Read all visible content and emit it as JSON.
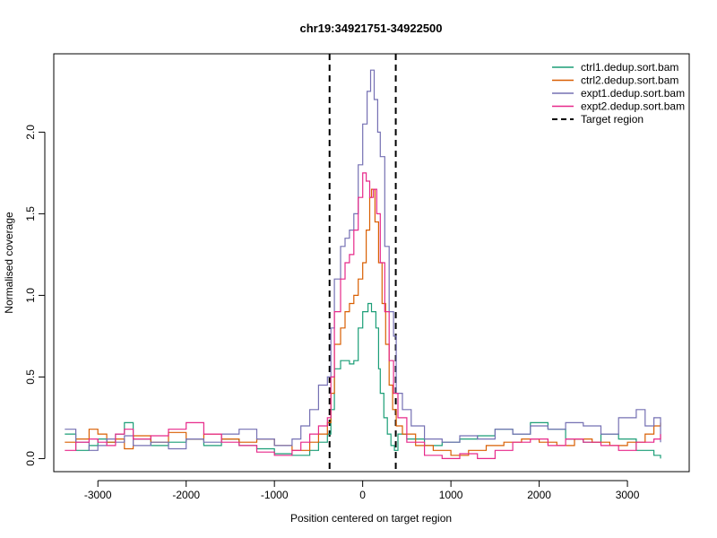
{
  "chart_data": {
    "type": "line",
    "title": "chr19:34921751-34922500",
    "xlabel": "Position centered on target region",
    "ylabel": "Normalised coverage",
    "xlim": [
      -3500,
      3700
    ],
    "ylim": [
      -0.08,
      2.48
    ],
    "x_ticks": [
      -3000,
      -2000,
      -1000,
      0,
      1000,
      2000,
      3000
    ],
    "x_tick_labels": [
      "-3000",
      "-2000",
      "-1000",
      "0",
      "1000",
      "2000",
      "3000"
    ],
    "y_ticks": [
      0.0,
      0.5,
      1.0,
      1.5,
      2.0
    ],
    "y_tick_labels": [
      "0.0",
      "0.5",
      "1.0",
      "1.5",
      "2.0"
    ],
    "grid": false,
    "legend_position": "top-right",
    "target_region": {
      "label": "Target region",
      "x_start": -375,
      "x_end": 375,
      "color": "#000000",
      "style": "dashed"
    },
    "series": [
      {
        "name": "ctrl1.dedup.sort.bam",
        "color": "#1B9E77",
        "points": [
          [
            -3375,
            0.15
          ],
          [
            -3250,
            0.05
          ],
          [
            -3100,
            0.08
          ],
          [
            -3000,
            0.12
          ],
          [
            -2900,
            0.1
          ],
          [
            -2800,
            0.15
          ],
          [
            -2700,
            0.22
          ],
          [
            -2600,
            0.12
          ],
          [
            -2400,
            0.08
          ],
          [
            -2200,
            0.1
          ],
          [
            -2000,
            0.12
          ],
          [
            -1800,
            0.08
          ],
          [
            -1600,
            0.12
          ],
          [
            -1400,
            0.08
          ],
          [
            -1200,
            0.06
          ],
          [
            -1000,
            0.03
          ],
          [
            -800,
            0.02
          ],
          [
            -600,
            0.05
          ],
          [
            -500,
            0.1
          ],
          [
            -400,
            0.15
          ],
          [
            -360,
            0.3
          ],
          [
            -320,
            0.55
          ],
          [
            -250,
            0.6
          ],
          [
            -150,
            0.58
          ],
          [
            -100,
            0.6
          ],
          [
            -50,
            0.8
          ],
          [
            0,
            0.9
          ],
          [
            60,
            0.95
          ],
          [
            100,
            0.9
          ],
          [
            150,
            0.8
          ],
          [
            180,
            0.55
          ],
          [
            200,
            0.4
          ],
          [
            240,
            0.25
          ],
          [
            280,
            0.15
          ],
          [
            320,
            0.08
          ],
          [
            360,
            0.05
          ],
          [
            400,
            0.15
          ],
          [
            500,
            0.12
          ],
          [
            700,
            0.08
          ],
          [
            900,
            0.1
          ],
          [
            1100,
            0.12
          ],
          [
            1300,
            0.14
          ],
          [
            1500,
            0.18
          ],
          [
            1700,
            0.15
          ],
          [
            1900,
            0.22
          ],
          [
            2100,
            0.18
          ],
          [
            2300,
            0.12
          ],
          [
            2500,
            0.1
          ],
          [
            2700,
            0.15
          ],
          [
            2900,
            0.12
          ],
          [
            3100,
            0.05
          ],
          [
            3300,
            0.02
          ],
          [
            3375,
            0.0
          ]
        ]
      },
      {
        "name": "ctrl2.dedup.sort.bam",
        "color": "#D95F02",
        "points": [
          [
            -3375,
            0.1
          ],
          [
            -3250,
            0.12
          ],
          [
            -3100,
            0.18
          ],
          [
            -3000,
            0.15
          ],
          [
            -2900,
            0.1
          ],
          [
            -2800,
            0.12
          ],
          [
            -2700,
            0.06
          ],
          [
            -2600,
            0.14
          ],
          [
            -2400,
            0.1
          ],
          [
            -2200,
            0.16
          ],
          [
            -2000,
            0.12
          ],
          [
            -1800,
            0.15
          ],
          [
            -1600,
            0.12
          ],
          [
            -1400,
            0.1
          ],
          [
            -1200,
            0.12
          ],
          [
            -1000,
            0.08
          ],
          [
            -800,
            0.05
          ],
          [
            -600,
            0.1
          ],
          [
            -500,
            0.15
          ],
          [
            -400,
            0.22
          ],
          [
            -360,
            0.4
          ],
          [
            -320,
            0.7
          ],
          [
            -250,
            0.8
          ],
          [
            -200,
            0.9
          ],
          [
            -150,
            0.95
          ],
          [
            -100,
            1.0
          ],
          [
            -50,
            1.1
          ],
          [
            0,
            1.2
          ],
          [
            40,
            1.4
          ],
          [
            80,
            1.6
          ],
          [
            100,
            1.65
          ],
          [
            140,
            1.45
          ],
          [
            180,
            1.2
          ],
          [
            220,
            0.95
          ],
          [
            260,
            0.7
          ],
          [
            300,
            0.45
          ],
          [
            340,
            0.3
          ],
          [
            380,
            0.2
          ],
          [
            450,
            0.15
          ],
          [
            600,
            0.08
          ],
          [
            800,
            0.05
          ],
          [
            1000,
            0.02
          ],
          [
            1200,
            0.05
          ],
          [
            1400,
            0.08
          ],
          [
            1600,
            0.1
          ],
          [
            1800,
            0.12
          ],
          [
            2000,
            0.1
          ],
          [
            2200,
            0.08
          ],
          [
            2400,
            0.12
          ],
          [
            2600,
            0.1
          ],
          [
            2800,
            0.08
          ],
          [
            3000,
            0.1
          ],
          [
            3200,
            0.15
          ],
          [
            3300,
            0.2
          ],
          [
            3375,
            0.22
          ]
        ]
      },
      {
        "name": "expt1.dedup.sort.bam",
        "color": "#7570B3",
        "points": [
          [
            -3375,
            0.18
          ],
          [
            -3250,
            0.1
          ],
          [
            -3100,
            0.05
          ],
          [
            -3000,
            0.08
          ],
          [
            -2900,
            0.12
          ],
          [
            -2800,
            0.1
          ],
          [
            -2700,
            0.14
          ],
          [
            -2600,
            0.08
          ],
          [
            -2400,
            0.1
          ],
          [
            -2200,
            0.06
          ],
          [
            -2000,
            0.12
          ],
          [
            -1800,
            0.1
          ],
          [
            -1600,
            0.15
          ],
          [
            -1400,
            0.18
          ],
          [
            -1200,
            0.12
          ],
          [
            -1000,
            0.08
          ],
          [
            -800,
            0.12
          ],
          [
            -700,
            0.2
          ],
          [
            -600,
            0.3
          ],
          [
            -500,
            0.45
          ],
          [
            -400,
            0.5
          ],
          [
            -360,
            0.8
          ],
          [
            -320,
            1.1
          ],
          [
            -250,
            1.3
          ],
          [
            -200,
            1.35
          ],
          [
            -150,
            1.4
          ],
          [
            -100,
            1.5
          ],
          [
            -50,
            1.8
          ],
          [
            0,
            2.05
          ],
          [
            50,
            2.25
          ],
          [
            90,
            2.38
          ],
          [
            130,
            2.2
          ],
          [
            170,
            2.0
          ],
          [
            200,
            1.85
          ],
          [
            250,
            1.3
          ],
          [
            300,
            0.9
          ],
          [
            350,
            0.75
          ],
          [
            380,
            0.4
          ],
          [
            450,
            0.3
          ],
          [
            550,
            0.2
          ],
          [
            700,
            0.12
          ],
          [
            900,
            0.1
          ],
          [
            1100,
            0.14
          ],
          [
            1300,
            0.12
          ],
          [
            1500,
            0.18
          ],
          [
            1700,
            0.15
          ],
          [
            1900,
            0.2
          ],
          [
            2100,
            0.18
          ],
          [
            2300,
            0.22
          ],
          [
            2500,
            0.2
          ],
          [
            2700,
            0.15
          ],
          [
            2900,
            0.25
          ],
          [
            3100,
            0.3
          ],
          [
            3200,
            0.2
          ],
          [
            3300,
            0.25
          ],
          [
            3375,
            0.1
          ]
        ]
      },
      {
        "name": "expt2.dedup.sort.bam",
        "color": "#E7298A",
        "points": [
          [
            -3375,
            0.05
          ],
          [
            -3250,
            0.1
          ],
          [
            -3100,
            0.12
          ],
          [
            -3000,
            0.1
          ],
          [
            -2900,
            0.08
          ],
          [
            -2800,
            0.15
          ],
          [
            -2700,
            0.18
          ],
          [
            -2600,
            0.12
          ],
          [
            -2400,
            0.14
          ],
          [
            -2200,
            0.18
          ],
          [
            -2000,
            0.22
          ],
          [
            -1800,
            0.15
          ],
          [
            -1600,
            0.1
          ],
          [
            -1400,
            0.08
          ],
          [
            -1200,
            0.04
          ],
          [
            -1000,
            0.02
          ],
          [
            -800,
            0.05
          ],
          [
            -700,
            0.1
          ],
          [
            -600,
            0.15
          ],
          [
            -500,
            0.2
          ],
          [
            -400,
            0.25
          ],
          [
            -360,
            0.5
          ],
          [
            -320,
            0.9
          ],
          [
            -250,
            1.1
          ],
          [
            -200,
            1.2
          ],
          [
            -150,
            1.25
          ],
          [
            -100,
            1.4
          ],
          [
            -50,
            1.6
          ],
          [
            0,
            1.75
          ],
          [
            40,
            1.7
          ],
          [
            80,
            1.6
          ],
          [
            120,
            1.65
          ],
          [
            160,
            1.5
          ],
          [
            200,
            1.2
          ],
          [
            250,
            0.9
          ],
          [
            300,
            0.6
          ],
          [
            350,
            0.4
          ],
          [
            400,
            0.25
          ],
          [
            500,
            0.1
          ],
          [
            700,
            0.02
          ],
          [
            900,
            0.0
          ],
          [
            1100,
            0.03
          ],
          [
            1300,
            0.0
          ],
          [
            1500,
            0.05
          ],
          [
            1700,
            0.1
          ],
          [
            1900,
            0.12
          ],
          [
            2100,
            0.08
          ],
          [
            2300,
            0.12
          ],
          [
            2500,
            0.1
          ],
          [
            2700,
            0.08
          ],
          [
            2900,
            0.05
          ],
          [
            3100,
            0.1
          ],
          [
            3300,
            0.12
          ],
          [
            3375,
            0.15
          ]
        ]
      }
    ]
  }
}
